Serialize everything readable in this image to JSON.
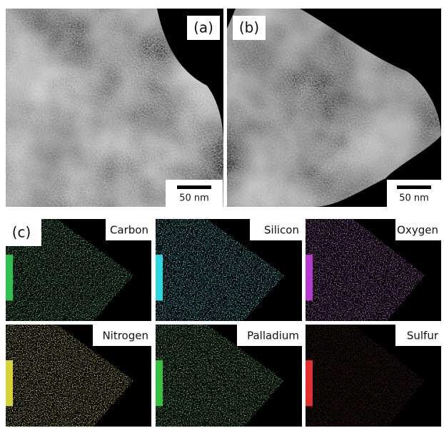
{
  "panels": [
    {
      "label": "(a)",
      "scale_bar": "50 nm"
    },
    {
      "label": "(b)",
      "scale_bar": "50 nm"
    }
  ],
  "maps": {
    "label": "(c)",
    "elements": [
      {
        "name": "Carbon",
        "color": "#2fbf4f"
      },
      {
        "name": "Silicon",
        "color": "#2fd6e0"
      },
      {
        "name": "Oxygen",
        "color": "#b33ccf"
      },
      {
        "name": "Nitrogen",
        "color": "#d8d23a"
      },
      {
        "name": "Palladium",
        "color": "#38c040"
      },
      {
        "name": "Sulfur",
        "color": "#e03030"
      }
    ]
  }
}
